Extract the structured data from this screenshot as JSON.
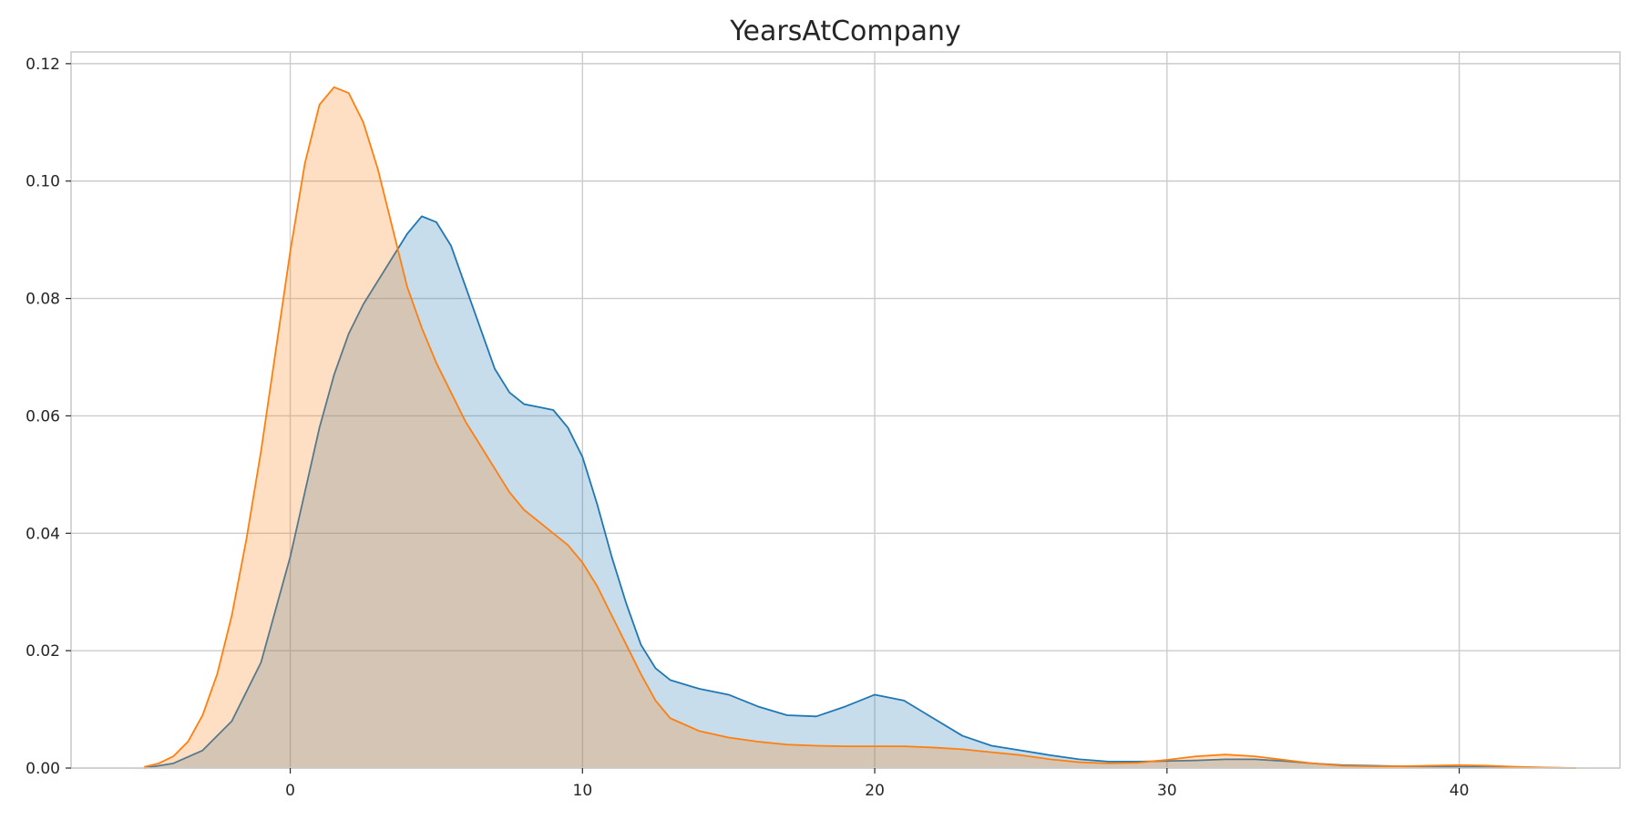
{
  "chart_data": {
    "type": "area",
    "title": "YearsAtCompany",
    "xlabel": "",
    "ylabel": "",
    "xlim": [
      -7.5,
      45.5
    ],
    "ylim": [
      0,
      0.122
    ],
    "x_ticks": [
      0,
      10,
      20,
      30,
      40
    ],
    "x_tick_labels": [
      "0",
      "10",
      "20",
      "30",
      "40"
    ],
    "y_ticks": [
      0,
      0.02,
      0.04,
      0.06,
      0.08,
      0.1,
      0.12
    ],
    "y_tick_labels": [
      "0.00",
      "0.02",
      "0.04",
      "0.06",
      "0.08",
      "0.10",
      "0.12"
    ],
    "grid": true,
    "series": [
      {
        "color": "#1f77b4",
        "fill": "#c6d9ea",
        "points": [
          [
            -5,
            0
          ],
          [
            -4,
            0.0008
          ],
          [
            -3,
            0.003
          ],
          [
            -2,
            0.008
          ],
          [
            -1,
            0.018
          ],
          [
            0,
            0.036
          ],
          [
            0.5,
            0.047
          ],
          [
            1,
            0.058
          ],
          [
            1.5,
            0.067
          ],
          [
            2,
            0.074
          ],
          [
            2.5,
            0.079
          ],
          [
            3,
            0.083
          ],
          [
            3.5,
            0.087
          ],
          [
            4,
            0.091
          ],
          [
            4.5,
            0.094
          ],
          [
            5,
            0.093
          ],
          [
            5.5,
            0.089
          ],
          [
            6,
            0.082
          ],
          [
            6.5,
            0.075
          ],
          [
            7,
            0.068
          ],
          [
            7.5,
            0.064
          ],
          [
            8,
            0.062
          ],
          [
            8.5,
            0.0615
          ],
          [
            9,
            0.061
          ],
          [
            9.5,
            0.058
          ],
          [
            10,
            0.053
          ],
          [
            10.5,
            0.045
          ],
          [
            11,
            0.036
          ],
          [
            11.5,
            0.028
          ],
          [
            12,
            0.021
          ],
          [
            12.5,
            0.017
          ],
          [
            13,
            0.015
          ],
          [
            14,
            0.0135
          ],
          [
            15,
            0.0125
          ],
          [
            16,
            0.0105
          ],
          [
            17,
            0.009
          ],
          [
            18,
            0.0088
          ],
          [
            19,
            0.0105
          ],
          [
            20,
            0.0125
          ],
          [
            21,
            0.0115
          ],
          [
            22,
            0.0085
          ],
          [
            23,
            0.0055
          ],
          [
            24,
            0.0038
          ],
          [
            25,
            0.003
          ],
          [
            26,
            0.0022
          ],
          [
            27,
            0.0015
          ],
          [
            28,
            0.0011
          ],
          [
            29,
            0.0011
          ],
          [
            30,
            0.0012
          ],
          [
            31,
            0.0013
          ],
          [
            32,
            0.0015
          ],
          [
            33,
            0.0015
          ],
          [
            34,
            0.0012
          ],
          [
            35,
            0.0008
          ],
          [
            36,
            0.0005
          ],
          [
            37,
            0.0004
          ],
          [
            38,
            0.0003
          ],
          [
            40,
            0.0002
          ],
          [
            41,
            0.00015
          ],
          [
            42,
            0.0001
          ],
          [
            44,
            0
          ]
        ]
      },
      {
        "color": "#ff7f0e",
        "fill": "#ffdcbf",
        "points": [
          [
            -5,
            0.0002
          ],
          [
            -4.5,
            0.0008
          ],
          [
            -4,
            0.002
          ],
          [
            -3.5,
            0.0045
          ],
          [
            -3,
            0.009
          ],
          [
            -2.5,
            0.016
          ],
          [
            -2,
            0.026
          ],
          [
            -1.5,
            0.039
          ],
          [
            -1,
            0.054
          ],
          [
            -0.5,
            0.071
          ],
          [
            0,
            0.088
          ],
          [
            0.5,
            0.103
          ],
          [
            1,
            0.113
          ],
          [
            1.5,
            0.116
          ],
          [
            2,
            0.115
          ],
          [
            2.5,
            0.11
          ],
          [
            3,
            0.102
          ],
          [
            3.5,
            0.092
          ],
          [
            4,
            0.082
          ],
          [
            4.5,
            0.075
          ],
          [
            5,
            0.069
          ],
          [
            5.5,
            0.064
          ],
          [
            6,
            0.059
          ],
          [
            6.5,
            0.055
          ],
          [
            7,
            0.051
          ],
          [
            7.5,
            0.047
          ],
          [
            8,
            0.044
          ],
          [
            8.5,
            0.042
          ],
          [
            9,
            0.04
          ],
          [
            9.5,
            0.038
          ],
          [
            10,
            0.035
          ],
          [
            10.5,
            0.031
          ],
          [
            11,
            0.026
          ],
          [
            11.5,
            0.021
          ],
          [
            12,
            0.016
          ],
          [
            12.5,
            0.0115
          ],
          [
            13,
            0.0085
          ],
          [
            14,
            0.0063
          ],
          [
            15,
            0.0052
          ],
          [
            16,
            0.0045
          ],
          [
            17,
            0.004
          ],
          [
            18,
            0.0038
          ],
          [
            19,
            0.0037
          ],
          [
            20,
            0.0037
          ],
          [
            21,
            0.0037
          ],
          [
            22,
            0.0035
          ],
          [
            23,
            0.0032
          ],
          [
            24,
            0.0027
          ],
          [
            25,
            0.0022
          ],
          [
            26,
            0.0015
          ],
          [
            27,
            0.001
          ],
          [
            28,
            0.0008
          ],
          [
            29,
            0.0009
          ],
          [
            30,
            0.0014
          ],
          [
            31,
            0.002
          ],
          [
            32,
            0.0023
          ],
          [
            33,
            0.002
          ],
          [
            34,
            0.0014
          ],
          [
            35,
            0.0008
          ],
          [
            36,
            0.0004
          ],
          [
            37,
            0.0003
          ],
          [
            38,
            0.0003
          ],
          [
            39,
            0.0004
          ],
          [
            40,
            0.0005
          ],
          [
            41,
            0.0004
          ],
          [
            42,
            0.0002
          ],
          [
            43,
            0.0001
          ],
          [
            44,
            0
          ]
        ]
      }
    ]
  }
}
